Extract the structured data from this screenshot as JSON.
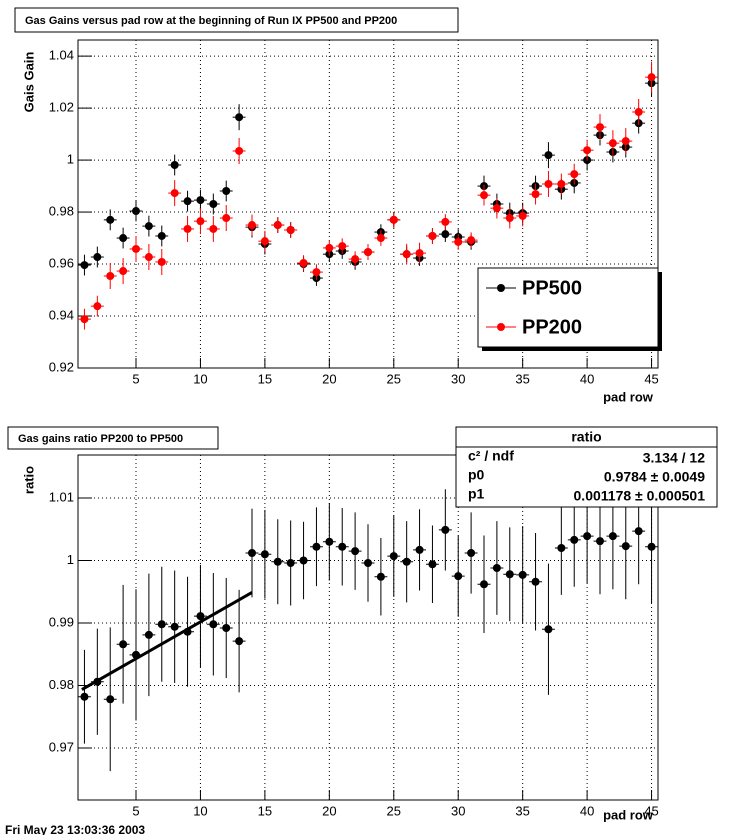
{
  "chart_data": [
    {
      "type": "scatter",
      "title": "Gas Gains versus pad row at the beginning of Run IX PP500 and PP200",
      "y_label": "Gais Gain",
      "x_label": "pad row",
      "x": [
        1,
        2,
        3,
        4,
        5,
        6,
        7,
        8,
        9,
        10,
        11,
        12,
        13,
        14,
        15,
        16,
        17,
        18,
        19,
        20,
        21,
        22,
        23,
        24,
        25,
        26,
        27,
        28,
        29,
        30,
        31,
        32,
        33,
        34,
        35,
        36,
        37,
        38,
        39,
        40,
        41,
        42,
        43,
        44,
        45
      ],
      "series": [
        {
          "name": "PP500",
          "color": "#000000",
          "values": [
            0.9596,
            0.9627,
            0.977,
            0.97,
            0.9804,
            0.9746,
            0.9708,
            0.9981,
            0.9842,
            0.9846,
            0.9831,
            0.9881,
            1.0165,
            0.9742,
            0.9677,
            0.975,
            0.9731,
            0.96,
            0.9546,
            0.9638,
            0.965,
            0.9608,
            0.9646,
            0.9723,
            0.977,
            0.9638,
            0.9623,
            0.9708,
            0.9715,
            0.9704,
            0.9685,
            0.99,
            0.9831,
            0.9796,
            0.9796,
            0.99,
            1.0019,
            0.9888,
            0.9912,
            1.0,
            1.0096,
            1.0031,
            1.005,
            1.0142,
            1.0296
          ],
          "errors": [
            0.004,
            0.004,
            0.004,
            0.004,
            0.004,
            0.004,
            0.004,
            0.004,
            0.004,
            0.004,
            0.004,
            0.004,
            0.005,
            0.004,
            0.004,
            0.003,
            0.003,
            0.003,
            0.003,
            0.003,
            0.003,
            0.003,
            0.003,
            0.003,
            0.003,
            0.003,
            0.003,
            0.003,
            0.003,
            0.003,
            0.003,
            0.004,
            0.004,
            0.004,
            0.004,
            0.004,
            0.005,
            0.004,
            0.004,
            0.004,
            0.004,
            0.004,
            0.004,
            0.004,
            0.005
          ]
        },
        {
          "name": "PP200",
          "color": "#ff0000",
          "values": [
            0.9388,
            0.9438,
            0.9554,
            0.9573,
            0.9658,
            0.9627,
            0.9608,
            0.9873,
            0.9735,
            0.9765,
            0.9735,
            0.9777,
            1.0035,
            0.975,
            0.9688,
            0.975,
            0.9731,
            0.9604,
            0.9569,
            0.9662,
            0.9669,
            0.9619,
            0.9646,
            0.97,
            0.977,
            0.9638,
            0.9642,
            0.9708,
            0.9762,
            0.9685,
            0.9692,
            0.9865,
            0.9815,
            0.9777,
            0.9785,
            0.9869,
            0.9908,
            0.9908,
            0.9946,
            1.0038,
            1.0127,
            1.0065,
            1.0073,
            1.0185,
            1.0319
          ],
          "errors": [
            0.004,
            0.004,
            0.005,
            0.005,
            0.005,
            0.005,
            0.005,
            0.005,
            0.005,
            0.005,
            0.005,
            0.005,
            0.005,
            0.004,
            0.004,
            0.003,
            0.003,
            0.003,
            0.003,
            0.003,
            0.003,
            0.003,
            0.003,
            0.003,
            0.003,
            0.004,
            0.004,
            0.003,
            0.003,
            0.003,
            0.003,
            0.004,
            0.004,
            0.004,
            0.004,
            0.004,
            0.005,
            0.004,
            0.004,
            0.004,
            0.005,
            0.005,
            0.005,
            0.005,
            0.006
          ]
        }
      ],
      "xlim": [
        0.5,
        45.5
      ],
      "xticks": [
        5,
        10,
        15,
        20,
        25,
        30,
        35,
        40,
        45
      ],
      "ylim": [
        0.92,
        1.0462
      ],
      "yticks": [
        0.92,
        0.94,
        0.96,
        0.98,
        1,
        1.02,
        1.04
      ],
      "grid": true,
      "legend": "right"
    },
    {
      "type": "scatter",
      "title": "Gas gains ratio PP200 to PP500",
      "y_label": "ratio",
      "x_label": "pad row",
      "x": [
        1,
        2,
        3,
        4,
        5,
        6,
        7,
        8,
        9,
        10,
        11,
        12,
        13,
        14,
        15,
        16,
        17,
        18,
        19,
        20,
        21,
        22,
        23,
        24,
        25,
        26,
        27,
        28,
        29,
        30,
        31,
        32,
        33,
        34,
        35,
        36,
        37,
        38,
        39,
        40,
        41,
        42,
        43,
        44,
        45
      ],
      "series": [
        {
          "name": "ratio",
          "color": "#000000",
          "values": [
            0.9782,
            0.9806,
            0.9778,
            0.9866,
            0.9849,
            0.9881,
            0.9898,
            0.9894,
            0.9886,
            0.9911,
            0.9898,
            0.9892,
            0.9871,
            1.0012,
            1.001,
            0.9998,
            0.9996,
            1.0,
            1.0022,
            1.003,
            1.0022,
            1.0015,
            0.9996,
            0.9974,
            1.0007,
            0.9998,
            1.0017,
            0.9994,
            1.0049,
            0.9975,
            1.0012,
            0.9962,
            0.9988,
            0.9978,
            0.9977,
            0.9966,
            0.989,
            1.002,
            1.0033,
            1.0039,
            1.0031,
            1.0039,
            1.0023,
            1.0047,
            1.0022
          ],
          "errors": [
            0.0075,
            0.0085,
            0.0115,
            0.0095,
            0.0105,
            0.0098,
            0.0092,
            0.009,
            0.0088,
            0.0082,
            0.0082,
            0.008,
            0.0082,
            0.0071,
            0.0071,
            0.0068,
            0.0068,
            0.0062,
            0.0063,
            0.0062,
            0.0062,
            0.0062,
            0.0062,
            0.0062,
            0.0065,
            0.0065,
            0.0065,
            0.0062,
            0.0065,
            0.0065,
            0.0065,
            0.0078,
            0.0075,
            0.0075,
            0.0078,
            0.0078,
            0.0105,
            0.0075,
            0.0075,
            0.0075,
            0.0085,
            0.0085,
            0.0085,
            0.0085,
            0.009
          ]
        }
      ],
      "fit": {
        "x": [
          0.8,
          14
        ]
      },
      "stats": {
        "title": "ratio",
        "rows": [
          {
            "name": "c² / ndf",
            "label": "3.134 / 12"
          },
          {
            "name": "p0",
            "value": 0.9784,
            "label": "0.9784  ± 0.0049"
          },
          {
            "name": "p1",
            "value": 0.001178,
            "label": "0.001178  ± 0.000501"
          }
        ]
      },
      "xlim": [
        0.5,
        45.5
      ],
      "xticks": [
        5,
        10,
        15,
        20,
        25,
        30,
        35,
        40,
        45
      ],
      "ylim": [
        0.96168,
        1.01688
      ],
      "yticks": [
        0.97,
        0.98,
        0.99,
        1,
        1.01
      ],
      "grid": true
    }
  ],
  "footer": "Fri May 23 13:03:36 2003"
}
